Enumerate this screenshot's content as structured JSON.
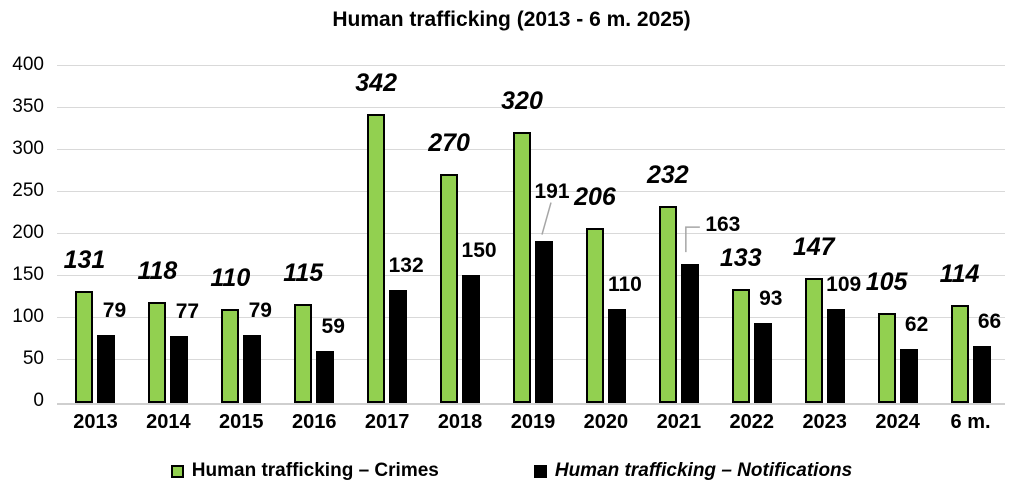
{
  "title": "Human trafficking (2013 - 6 m. 2025)",
  "colors": {
    "background": "#FFFFFF",
    "crimes_fill": "#92D050",
    "crimes_border": "#000000",
    "notifications_fill": "#000000",
    "gridline": "#D9D9D9",
    "axis_line": "#CFCFCF",
    "leader_line": "#A6A6A6",
    "text": "#000000"
  },
  "legend": {
    "crimes_label": "Human trafficking – Crimes",
    "notifications_label": "Human trafficking – Notifications"
  },
  "chart_data": {
    "type": "bar",
    "title": "Human trafficking (2013 - 6 m. 2025)",
    "categories": [
      "2013",
      "2014",
      "2015",
      "2016",
      "2017",
      "2018",
      "2019",
      "2020",
      "2021",
      "2022",
      "2023",
      "2024",
      "6 m."
    ],
    "series": [
      {
        "name": "Human trafficking – Crimes",
        "color": "#92D050",
        "label_style": "bold-italic",
        "values": [
          131,
          118,
          110,
          115,
          342,
          270,
          320,
          206,
          232,
          133,
          147,
          105,
          114
        ]
      },
      {
        "name": "Human trafficking – Notifications",
        "color": "#000000",
        "label_style": "bold",
        "values": [
          79,
          77,
          79,
          59,
          132,
          150,
          191,
          110,
          163,
          93,
          109,
          62,
          66
        ]
      }
    ],
    "ylim": [
      0,
      400
    ],
    "yticks": [
      0,
      50,
      100,
      150,
      200,
      250,
      300,
      350,
      400
    ],
    "grid": "horizontal-light-gray",
    "legend_position": "bottom",
    "data_labels": true,
    "callout_labels": [
      {
        "category": "2019",
        "series": "Human trafficking – Notifications",
        "value": 191
      },
      {
        "category": "2021",
        "series": "Human trafficking – Notifications",
        "value": 163
      }
    ]
  }
}
